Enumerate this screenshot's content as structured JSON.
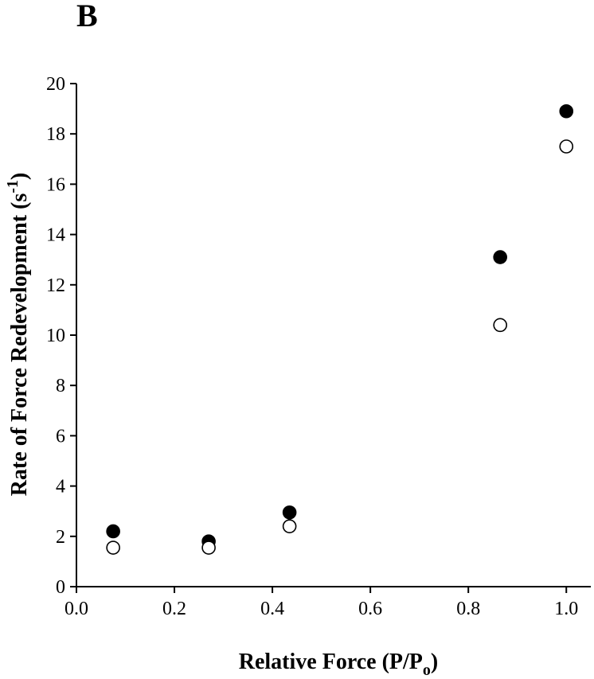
{
  "chart_data": {
    "type": "scatter",
    "panel_label": "B",
    "xlabel": {
      "main": "Relative Force (P/P",
      "sub": "o",
      "end": ")"
    },
    "ylabel": {
      "main": "Rate of Force Redevelopment (s",
      "sup": "-1",
      "end": ")"
    },
    "xlim": [
      0.0,
      1.05
    ],
    "ylim": [
      0,
      20
    ],
    "xticks": [
      "0.0",
      "0.2",
      "0.4",
      "0.6",
      "0.8",
      "1.0"
    ],
    "yticks": [
      "0",
      "2",
      "4",
      "6",
      "8",
      "10",
      "12",
      "14",
      "16",
      "18",
      "20"
    ],
    "grid": false,
    "series": [
      {
        "marker": "filled-circle",
        "color": "#000000",
        "x": [
          0.075,
          0.27,
          0.435,
          0.865,
          1.0
        ],
        "y": [
          2.2,
          1.8,
          2.95,
          13.1,
          18.9
        ]
      },
      {
        "marker": "open-circle",
        "color": "#000000",
        "x": [
          0.075,
          0.27,
          0.435,
          0.865,
          1.0
        ],
        "y": [
          1.55,
          1.55,
          2.4,
          10.4,
          17.5
        ]
      }
    ]
  }
}
